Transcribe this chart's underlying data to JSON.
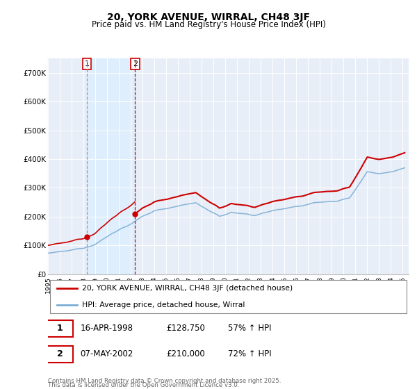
{
  "title": "20, YORK AVENUE, WIRRAL, CH48 3JF",
  "subtitle": "Price paid vs. HM Land Registry's House Price Index (HPI)",
  "sale1_date": "16-APR-1998",
  "sale1_price": 128750,
  "sale1_hpi": "57% ↑ HPI",
  "sale2_date": "07-MAY-2002",
  "sale2_price": 210000,
  "sale2_hpi": "72% ↑ HPI",
  "legend_line1": "20, YORK AVENUE, WIRRAL, CH48 3JF (detached house)",
  "legend_line2": "HPI: Average price, detached house, Wirral",
  "footer": "Contains HM Land Registry data © Crown copyright and database right 2025.\nThis data is licensed under the Open Government Licence v3.0.",
  "red_color": "#cc0000",
  "blue_color": "#7aadd4",
  "vline1_color": "#999999",
  "vline2_color": "#cc0000",
  "shade_color": "#ddeeff",
  "bg_color": "#e8eef8",
  "ylim": [
    0,
    750000
  ],
  "sale1_t": 1998.29,
  "sale2_t": 2002.37
}
